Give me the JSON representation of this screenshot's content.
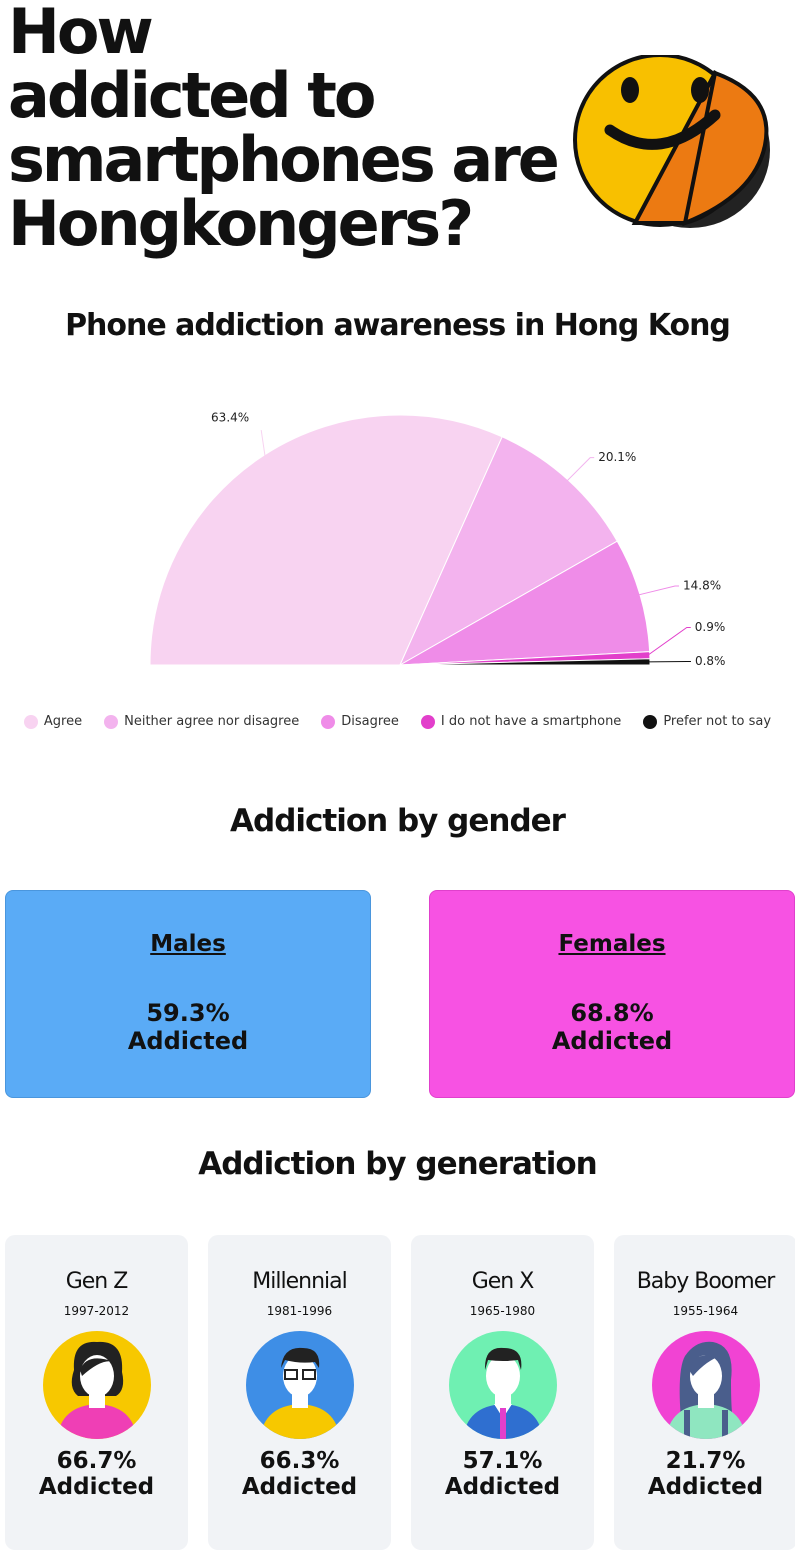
{
  "header": {
    "title_lines": [
      "How",
      "addicted to",
      "smartphones are",
      "Hongkongers?"
    ]
  },
  "chart_data": {
    "type": "pie",
    "half": true,
    "title": "Phone addiction awareness in Hong Kong",
    "categories": [
      "Agree",
      "Neither agree nor disagree",
      "Disagree",
      "I do not have a smartphone",
      "Prefer not to say"
    ],
    "values": [
      63.4,
      20.1,
      14.8,
      0.9,
      0.8
    ],
    "value_labels": [
      "63.4%",
      "20.1%",
      "14.8%",
      "0.9%",
      "0.8%"
    ],
    "colors": [
      "#f8d3f1",
      "#f3b3ee",
      "#ef8ce8",
      "#e23fcb",
      "#111111"
    ]
  },
  "gender": {
    "title": "Addiction by gender",
    "groups": [
      {
        "name": "Males",
        "value": "59.3%",
        "status": "Addicted"
      },
      {
        "name": "Females",
        "value": "68.8%",
        "status": "Addicted"
      }
    ]
  },
  "generation": {
    "title": "Addiction by generation",
    "groups": [
      {
        "name": "Gen Z",
        "years": "1997-2012",
        "value": "66.7%",
        "status": "Addicted"
      },
      {
        "name": "Millennial",
        "years": "1981-1996",
        "value": "66.3%",
        "status": "Addicted"
      },
      {
        "name": "Gen X",
        "years": "1965-1980",
        "value": "57.1%",
        "status": "Addicted"
      },
      {
        "name": "Baby Boomer",
        "years": "1955-1964",
        "value": "21.7%",
        "status": "Addicted"
      }
    ]
  }
}
